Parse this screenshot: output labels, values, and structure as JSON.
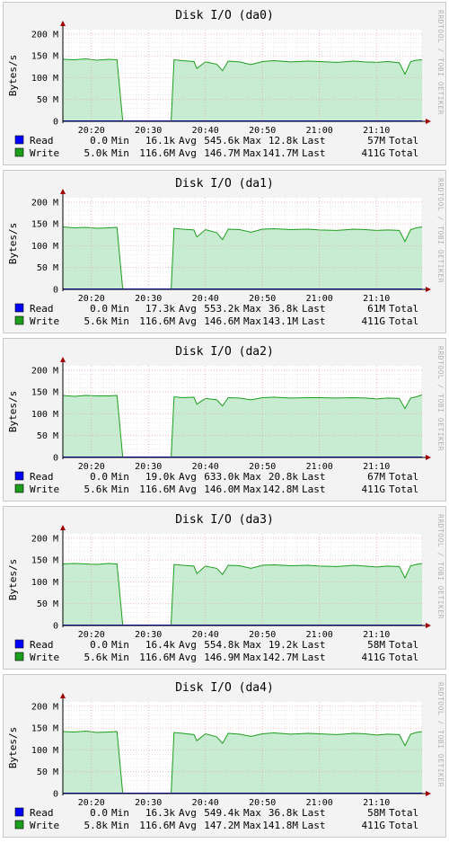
{
  "side_label": "RRDTOOL / TOBI OETIKER",
  "colors": {
    "read": "#0000ff",
    "write_fill": "#c8ecd2",
    "write_line": "#1c9e1c",
    "grid_major": "#e6a0a0",
    "grid_minor": "#d9d9d9",
    "axis": "#000000",
    "arrow": "#a00000"
  },
  "chart_data": [
    {
      "type": "area",
      "title": "Disk I/O (da0)",
      "ylabel": "Bytes/s",
      "ylim": [
        0,
        210
      ],
      "yticks": [
        0,
        50,
        100,
        150,
        200
      ],
      "ytick_labels": [
        "0",
        "50 M",
        "100 M",
        "150 M",
        "200 M"
      ],
      "xlim": [
        "20:15",
        "21:18"
      ],
      "xticks": [
        "20:20",
        "20:30",
        "20:40",
        "20:50",
        "21:00",
        "21:10"
      ],
      "series": [
        {
          "name": "Read",
          "stats": {
            "min": "0.0",
            "avg": "16.1k",
            "max": "545.6k",
            "last": "12.8k",
            "total": "57M"
          },
          "x": [
            "20:15",
            "20:25",
            "20:25.5",
            "20:34",
            "20:34.5",
            "21:18"
          ],
          "values": [
            0.01,
            0.01,
            0.01,
            0.01,
            0.01,
            0.01
          ]
        },
        {
          "name": "Write",
          "stats": {
            "min": "5.0k",
            "avg": "116.6M",
            "max": "146.7M",
            "last": "141.7M",
            "total": "411G"
          },
          "x": [
            "20:15",
            "20:17",
            "20:19",
            "20:21",
            "20:23",
            "20:24.5",
            "20:25.5",
            "20:34",
            "20:34.5",
            "20:36",
            "20:38",
            "20:38.5",
            "20:40",
            "20:42",
            "20:43",
            "20:44",
            "20:46",
            "20:48",
            "20:50",
            "20:52",
            "20:55",
            "20:58",
            "21:00",
            "21:03",
            "21:06",
            "21:08",
            "21:10",
            "21:12",
            "21:14",
            "21:15",
            "21:16",
            "21:17",
            "21:18"
          ],
          "values": [
            142,
            141,
            143,
            140,
            142,
            141,
            0,
            0,
            141,
            139,
            137,
            121,
            136,
            131,
            116,
            138,
            136,
            130,
            137,
            139,
            136,
            138,
            137,
            135,
            138,
            136,
            135,
            137,
            134,
            108,
            137,
            140,
            141
          ]
        }
      ]
    },
    {
      "type": "area",
      "title": "Disk I/O (da1)",
      "ylabel": "Bytes/s",
      "ylim": [
        0,
        210
      ],
      "yticks": [
        0,
        50,
        100,
        150,
        200
      ],
      "ytick_labels": [
        "0",
        "50 M",
        "100 M",
        "150 M",
        "200 M"
      ],
      "xlim": [
        "20:15",
        "21:18"
      ],
      "xticks": [
        "20:20",
        "20:30",
        "20:40",
        "20:50",
        "21:00",
        "21:10"
      ],
      "series": [
        {
          "name": "Read",
          "stats": {
            "min": "0.0",
            "avg": "17.3k",
            "max": "553.2k",
            "last": "36.8k",
            "total": "61M"
          },
          "x": [
            "20:15",
            "20:25",
            "20:25.5",
            "20:34",
            "20:34.5",
            "21:18"
          ],
          "values": [
            0.01,
            0.01,
            0.01,
            0.01,
            0.01,
            0.01
          ]
        },
        {
          "name": "Write",
          "stats": {
            "min": "5.6k",
            "avg": "116.6M",
            "max": "146.6M",
            "last": "143.1M",
            "total": "411G"
          },
          "x": [
            "20:15",
            "20:17",
            "20:19",
            "20:21",
            "20:23",
            "20:24.5",
            "20:25.5",
            "20:34",
            "20:34.5",
            "20:36",
            "20:38",
            "20:38.5",
            "20:40",
            "20:42",
            "20:43",
            "20:44",
            "20:46",
            "20:48",
            "20:50",
            "20:52",
            "20:55",
            "20:58",
            "21:00",
            "21:03",
            "21:06",
            "21:08",
            "21:10",
            "21:12",
            "21:14",
            "21:15",
            "21:16",
            "21:17",
            "21:18"
          ],
          "values": [
            143,
            141,
            142,
            140,
            141,
            142,
            0,
            0,
            140,
            138,
            136,
            120,
            137,
            130,
            114,
            138,
            137,
            131,
            138,
            139,
            137,
            138,
            136,
            135,
            138,
            137,
            135,
            136,
            135,
            110,
            137,
            141,
            143
          ]
        }
      ]
    },
    {
      "type": "area",
      "title": "Disk I/O (da2)",
      "ylabel": "Bytes/s",
      "ylim": [
        0,
        210
      ],
      "yticks": [
        0,
        50,
        100,
        150,
        200
      ],
      "ytick_labels": [
        "0",
        "50 M",
        "100 M",
        "150 M",
        "200 M"
      ],
      "xlim": [
        "20:15",
        "21:18"
      ],
      "xticks": [
        "20:20",
        "20:30",
        "20:40",
        "20:50",
        "21:00",
        "21:10"
      ],
      "series": [
        {
          "name": "Read",
          "stats": {
            "min": "0.0",
            "avg": "19.0k",
            "max": "633.0k",
            "last": "20.8k",
            "total": "67M"
          },
          "x": [
            "20:15",
            "20:25",
            "20:25.5",
            "20:34",
            "20:34.5",
            "21:18"
          ],
          "values": [
            0.01,
            0.01,
            0.01,
            0.01,
            0.01,
            0.01
          ]
        },
        {
          "name": "Write",
          "stats": {
            "min": "5.6k",
            "avg": "116.6M",
            "max": "146.0M",
            "last": "142.8M",
            "total": "411G"
          },
          "x": [
            "20:15",
            "20:17",
            "20:19",
            "20:21",
            "20:23",
            "20:24.5",
            "20:25.5",
            "20:34",
            "20:34.5",
            "20:36",
            "20:38",
            "20:38.5",
            "20:40",
            "20:42",
            "20:43",
            "20:44",
            "20:46",
            "20:48",
            "20:50",
            "20:52",
            "20:55",
            "20:58",
            "21:00",
            "21:03",
            "21:06",
            "21:08",
            "21:10",
            "21:12",
            "21:14",
            "21:15",
            "21:16",
            "21:17",
            "21:18"
          ],
          "values": [
            142,
            140,
            142,
            141,
            141,
            142,
            0,
            0,
            139,
            137,
            138,
            122,
            135,
            132,
            118,
            137,
            136,
            132,
            137,
            138,
            136,
            137,
            137,
            136,
            137,
            136,
            134,
            136,
            135,
            112,
            136,
            139,
            143
          ]
        }
      ]
    },
    {
      "type": "area",
      "title": "Disk I/O (da3)",
      "ylabel": "Bytes/s",
      "ylim": [
        0,
        210
      ],
      "yticks": [
        0,
        50,
        100,
        150,
        200
      ],
      "ytick_labels": [
        "0",
        "50 M",
        "100 M",
        "150 M",
        "200 M"
      ],
      "xlim": [
        "20:15",
        "21:18"
      ],
      "xticks": [
        "20:20",
        "20:30",
        "20:40",
        "20:50",
        "21:00",
        "21:10"
      ],
      "series": [
        {
          "name": "Read",
          "stats": {
            "min": "0.0",
            "avg": "16.4k",
            "max": "554.8k",
            "last": "19.2k",
            "total": "58M"
          },
          "x": [
            "20:15",
            "20:25",
            "20:25.5",
            "20:34",
            "20:34.5",
            "21:18"
          ],
          "values": [
            0.01,
            0.01,
            0.01,
            0.01,
            0.01,
            0.01
          ]
        },
        {
          "name": "Write",
          "stats": {
            "min": "5.6k",
            "avg": "116.6M",
            "max": "146.9M",
            "last": "142.7M",
            "total": "411G"
          },
          "x": [
            "20:15",
            "20:17",
            "20:19",
            "20:21",
            "20:23",
            "20:24.5",
            "20:25.5",
            "20:34",
            "20:34",
            "20:34.5",
            "20:36",
            "20:38",
            "20:38.5",
            "20:40",
            "20:42",
            "20:43",
            "20:44",
            "20:46",
            "20:48",
            "20:50",
            "20:52",
            "20:55",
            "20:58",
            "21:00",
            "21:03",
            "21:06",
            "21:08",
            "21:10",
            "21:12",
            "21:14",
            "21:15",
            "21:16",
            "21:17",
            "21:18"
          ],
          "values": [
            141,
            142,
            141,
            140,
            142,
            141,
            0,
            0,
            5,
            140,
            138,
            136,
            119,
            136,
            131,
            117,
            138,
            137,
            131,
            138,
            139,
            137,
            138,
            136,
            135,
            138,
            136,
            134,
            136,
            135,
            109,
            137,
            140,
            142
          ]
        }
      ]
    },
    {
      "type": "area",
      "title": "Disk I/O (da4)",
      "ylabel": "Bytes/s",
      "ylim": [
        0,
        210
      ],
      "yticks": [
        0,
        50,
        100,
        150,
        200
      ],
      "ytick_labels": [
        "0",
        "50 M",
        "100 M",
        "150 M",
        "200 M"
      ],
      "xlim": [
        "20:15",
        "21:18"
      ],
      "xticks": [
        "20:20",
        "20:30",
        "20:40",
        "20:50",
        "21:00",
        "21:10"
      ],
      "series": [
        {
          "name": "Read",
          "stats": {
            "min": "0.0",
            "avg": "16.3k",
            "max": "549.4k",
            "last": "36.8k",
            "total": "58M"
          },
          "x": [
            "20:15",
            "20:25",
            "20:25.5",
            "20:34",
            "20:34.5",
            "21:18"
          ],
          "values": [
            0.01,
            0.01,
            0.01,
            0.01,
            0.01,
            0.01
          ]
        },
        {
          "name": "Write",
          "stats": {
            "min": "5.8k",
            "avg": "116.6M",
            "max": "147.2M",
            "last": "141.8M",
            "total": "411G"
          },
          "x": [
            "20:15",
            "20:17",
            "20:19",
            "20:21",
            "20:23",
            "20:24.5",
            "20:25.5",
            "20:34",
            "20:34.5",
            "20:36",
            "20:38",
            "20:38.5",
            "20:40",
            "20:42",
            "20:43",
            "20:44",
            "20:46",
            "20:48",
            "20:50",
            "20:52",
            "20:55",
            "20:58",
            "21:00",
            "21:03",
            "21:06",
            "21:08",
            "21:10",
            "21:12",
            "21:14",
            "21:15",
            "21:16",
            "21:17",
            "21:18"
          ],
          "values": [
            142,
            141,
            143,
            140,
            141,
            142,
            0,
            0,
            140,
            138,
            135,
            121,
            137,
            130,
            115,
            138,
            136,
            131,
            137,
            139,
            136,
            138,
            137,
            135,
            138,
            137,
            134,
            136,
            135,
            110,
            136,
            140,
            142
          ]
        }
      ]
    }
  ],
  "legend_labels": {
    "min": "Min",
    "avg": "Avg",
    "max": "Max",
    "last": "Last",
    "total": "Total"
  }
}
